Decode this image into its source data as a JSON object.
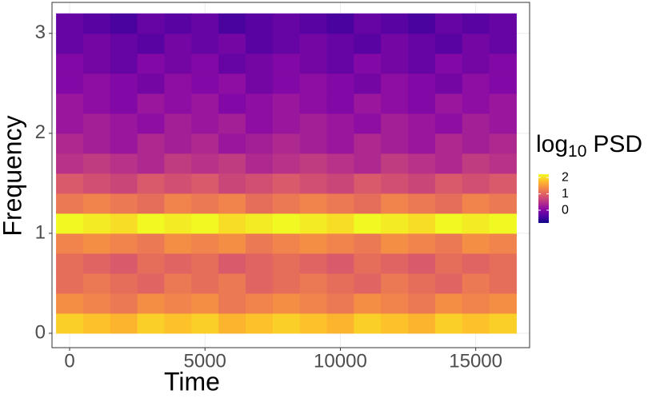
{
  "chart_data": {
    "type": "heatmap",
    "x_label": "Time",
    "y_label": "Frequency",
    "legend_title": {
      "text": "log",
      "subscript": "10",
      "after": "PSD"
    },
    "x": [
      0,
      1000,
      2000,
      3000,
      4000,
      5000,
      6000,
      7000,
      8000,
      9000,
      10000,
      11000,
      12000,
      13000,
      14000,
      15000,
      16000
    ],
    "y": [
      0.1,
      0.3,
      0.5,
      0.7,
      0.9,
      1.1,
      1.3,
      1.5,
      1.7,
      1.9,
      2.1,
      2.3,
      2.5,
      2.7,
      2.9,
      3.1
    ],
    "z": [
      [
        1.9,
        1.8,
        1.7,
        1.9,
        1.8,
        1.9,
        1.7,
        1.8,
        1.9,
        1.8,
        1.7,
        1.9,
        1.8,
        1.7,
        1.9,
        1.8,
        1.9
      ],
      [
        1.4,
        1.3,
        1.2,
        1.4,
        1.3,
        1.4,
        1.2,
        1.3,
        1.4,
        1.3,
        1.2,
        1.4,
        1.3,
        1.2,
        1.4,
        1.3,
        1.4
      ],
      [
        1.1,
        1.2,
        1.1,
        1.0,
        1.2,
        1.1,
        1.2,
        1.0,
        1.1,
        1.2,
        1.1,
        1.0,
        1.2,
        1.1,
        1.0,
        1.2,
        1.1
      ],
      [
        1.1,
        1.0,
        0.9,
        1.1,
        1.0,
        1.1,
        0.9,
        1.0,
        1.1,
        1.0,
        0.9,
        1.1,
        1.0,
        0.9,
        1.1,
        1.0,
        1.1
      ],
      [
        1.3,
        1.4,
        1.3,
        1.2,
        1.4,
        1.3,
        1.4,
        1.2,
        1.3,
        1.4,
        1.3,
        1.2,
        1.4,
        1.3,
        1.2,
        1.4,
        1.3
      ],
      [
        2.2,
        2.1,
        2.0,
        2.2,
        2.1,
        2.2,
        2.0,
        2.1,
        2.2,
        2.1,
        2.0,
        2.2,
        2.1,
        2.0,
        2.2,
        2.1,
        2.2
      ],
      [
        1.2,
        1.3,
        1.2,
        1.1,
        1.3,
        1.2,
        1.3,
        1.1,
        1.2,
        1.3,
        1.2,
        1.1,
        1.3,
        1.2,
        1.1,
        1.3,
        1.2
      ],
      [
        0.9,
        0.8,
        0.7,
        0.9,
        0.8,
        0.9,
        0.7,
        0.8,
        0.9,
        0.8,
        0.7,
        0.9,
        0.8,
        0.7,
        0.9,
        0.8,
        0.9
      ],
      [
        0.5,
        0.6,
        0.5,
        0.4,
        0.6,
        0.5,
        0.6,
        0.4,
        0.5,
        0.6,
        0.5,
        0.4,
        0.6,
        0.5,
        0.4,
        0.6,
        0.5
      ],
      [
        0.4,
        0.3,
        0.2,
        0.4,
        0.3,
        0.4,
        0.2,
        0.3,
        0.4,
        0.3,
        0.2,
        0.4,
        0.3,
        0.2,
        0.4,
        0.3,
        0.4
      ],
      [
        0.2,
        0.3,
        0.2,
        0.1,
        0.3,
        0.2,
        0.3,
        0.1,
        0.2,
        0.3,
        0.2,
        0.1,
        0.3,
        0.2,
        0.1,
        0.3,
        0.2
      ],
      [
        0.2,
        0.1,
        0,
        0.2,
        0.1,
        0.2,
        0,
        0.1,
        0.2,
        0.1,
        0,
        0.2,
        0.1,
        0,
        0.2,
        0.1,
        0.2
      ],
      [
        0,
        0.1,
        0,
        -0.1,
        0.1,
        0,
        0.1,
        -0.1,
        0,
        0.1,
        0,
        -0.1,
        0.1,
        0,
        -0.1,
        0.1,
        0
      ],
      [
        0,
        -0.1,
        -0.2,
        0,
        -0.1,
        0,
        -0.2,
        -0.1,
        0,
        -0.1,
        -0.2,
        0,
        -0.1,
        -0.2,
        0,
        -0.1,
        0
      ],
      [
        -0.2,
        -0.1,
        -0.2,
        -0.3,
        -0.1,
        -0.2,
        -0.1,
        -0.3,
        -0.2,
        -0.1,
        -0.2,
        -0.3,
        -0.1,
        -0.2,
        -0.3,
        -0.1,
        -0.2
      ],
      [
        -0.2,
        -0.3,
        -0.4,
        -0.2,
        -0.3,
        -0.2,
        -0.4,
        -0.3,
        -0.2,
        -0.3,
        -0.4,
        -0.2,
        -0.3,
        -0.4,
        -0.2,
        -0.3,
        -0.2
      ]
    ],
    "xlim": [
      -650,
      16990
    ],
    "ylim": [
      -0.144,
      3.31
    ],
    "xticks": [
      0,
      5000,
      10000,
      15000
    ],
    "yticks": [
      0,
      1,
      2,
      3
    ],
    "zlim": [
      -0.78,
      2.2
    ],
    "zticks": [
      0,
      1,
      2
    ],
    "colors": [
      "#0d0887",
      "#5302a3",
      "#8b0aa5",
      "#b83289",
      "#db5c68",
      "#f48849",
      "#febd2a",
      "#f0f921"
    ],
    "grid": true
  }
}
